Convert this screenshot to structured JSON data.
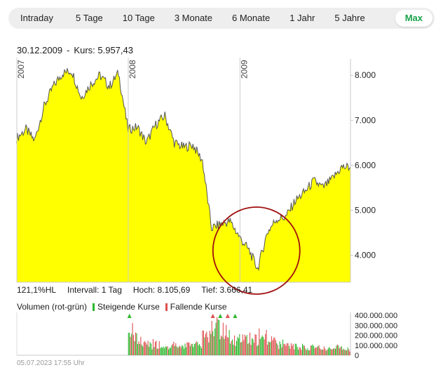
{
  "tabs": [
    {
      "label": "Intraday",
      "active": false
    },
    {
      "label": "5 Tage",
      "active": false
    },
    {
      "label": "10 Tage",
      "active": false
    },
    {
      "label": "3 Monate",
      "active": false
    },
    {
      "label": "6 Monate",
      "active": false
    },
    {
      "label": "1 Jahr",
      "active": false
    },
    {
      "label": "5 Jahre",
      "active": false
    },
    {
      "label": "Max",
      "active": true
    }
  ],
  "status": {
    "date": "30.12.2009",
    "separator": "-",
    "price_label": "Kurs: 5.957,43"
  },
  "stats": {
    "hl": "121,1%HL",
    "interval": "Intervall: 1 Tag",
    "high": "Hoch: 8.105,69",
    "low": "Tief: 3.666,41"
  },
  "volume_legend": {
    "title": "Volumen (rot-grün)",
    "rising": "Steigende Kurse",
    "falling": "Fallende Kurse"
  },
  "timestamp": "05.07.2023 17:55 Uhr",
  "colors": {
    "area_fill": "#ffff00",
    "line": "#555555",
    "rising": "#2db82d",
    "falling": "#e05050",
    "annotation_circle": "#a01010",
    "active_tab": "#1aa34a"
  },
  "chart_data": [
    {
      "type": "area",
      "x_range": [
        "2007-01-02",
        "2009-12-30"
      ],
      "year_markers": [
        "2007",
        "2008",
        "2009"
      ],
      "y_ticks": [
        "4.000",
        "5.000",
        "6.000",
        "7.000",
        "8.000"
      ],
      "ylim": [
        3400,
        8300
      ],
      "grid": false,
      "points": [
        [
          "2007-01",
          6600
        ],
        [
          "2007-02",
          6800
        ],
        [
          "2007-03",
          6550
        ],
        [
          "2007-04",
          7300
        ],
        [
          "2007-05",
          7750
        ],
        [
          "2007-06",
          8050
        ],
        [
          "2007-07",
          8100
        ],
        [
          "2007-08",
          7500
        ],
        [
          "2007-09",
          7800
        ],
        [
          "2007-10",
          8000
        ],
        [
          "2007-11",
          7750
        ],
        [
          "2007-12",
          8050
        ],
        [
          "2008-01",
          6800
        ],
        [
          "2008-02",
          6850
        ],
        [
          "2008-03",
          6500
        ],
        [
          "2008-04",
          6900
        ],
        [
          "2008-05",
          7100
        ],
        [
          "2008-06",
          6500
        ],
        [
          "2008-07",
          6400
        ],
        [
          "2008-08",
          6450
        ],
        [
          "2008-09",
          6100
        ],
        [
          "2008-10",
          4600
        ],
        [
          "2008-11",
          4700
        ],
        [
          "2008-12",
          4750
        ],
        [
          "2009-01",
          4400
        ],
        [
          "2009-02",
          4100
        ],
        [
          "2009-03",
          3700
        ],
        [
          "2009-04",
          4500
        ],
        [
          "2009-05",
          4800
        ],
        [
          "2009-06",
          4850
        ],
        [
          "2009-07",
          5200
        ],
        [
          "2009-08",
          5400
        ],
        [
          "2009-09",
          5650
        ],
        [
          "2009-10",
          5500
        ],
        [
          "2009-11",
          5700
        ],
        [
          "2009-12",
          5957.43
        ]
      ],
      "annotation": {
        "shape": "circle",
        "target": "Tief: 3.666,41"
      }
    },
    {
      "type": "bar",
      "title": "Volumen (rot-grün)",
      "y_ticks": [
        "0",
        "100.000.000",
        "200.000.000",
        "300.000.000",
        "400.000.000"
      ],
      "ylim": [
        0,
        400000000
      ],
      "series": [
        {
          "name": "Steigende Kurse",
          "color": "#2db82d",
          "values": [
            0,
            0,
            0,
            0,
            0,
            0,
            0,
            0,
            0,
            0,
            0,
            0,
            180,
            120,
            100,
            95,
            90,
            110,
            90,
            100,
            180,
            280,
            210,
            160,
            170,
            150,
            180,
            150,
            120,
            100,
            90,
            80,
            85,
            75,
            80,
            70
          ]
        },
        {
          "name": "Fallende Kurse",
          "color": "#e05050",
          "values": [
            0,
            0,
            0,
            0,
            0,
            0,
            0,
            0,
            0,
            0,
            0,
            0,
            240,
            150,
            130,
            110,
            100,
            95,
            100,
            120,
            200,
            300,
            250,
            190,
            180,
            170,
            200,
            160,
            110,
            90,
            95,
            85,
            80,
            70,
            90,
            65
          ]
        }
      ],
      "unit_scale": 1000000
    }
  ]
}
